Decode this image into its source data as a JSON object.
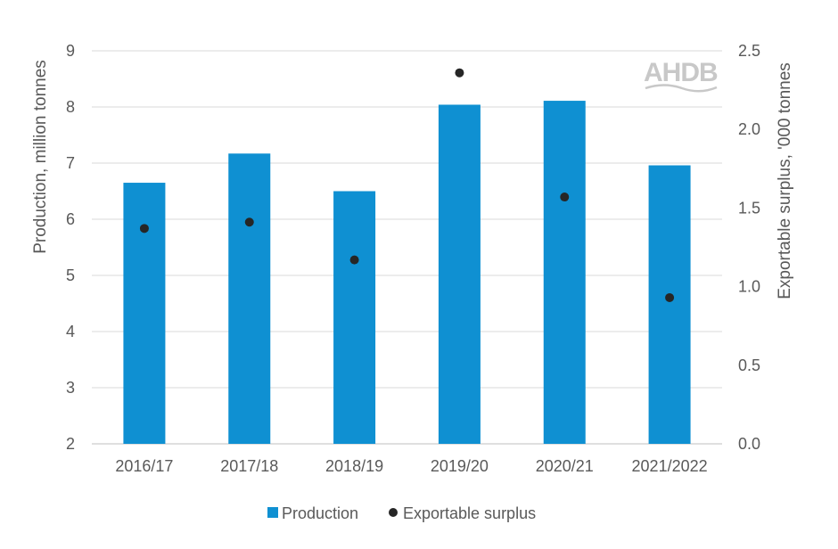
{
  "chart_data": {
    "type": "bar",
    "categories": [
      "2016/17",
      "2017/18",
      "2018/19",
      "2019/20",
      "2020/21",
      "2021/2022"
    ],
    "series": [
      {
        "name": "Production",
        "type": "bar",
        "axis": "left",
        "values": [
          6.65,
          7.17,
          6.5,
          8.04,
          8.11,
          6.96
        ]
      },
      {
        "name": "Exportable surplus",
        "type": "scatter",
        "axis": "right",
        "values": [
          1.37,
          1.41,
          1.17,
          2.36,
          1.57,
          0.93
        ]
      }
    ],
    "ylabel": "Production, million tonnes",
    "y2label": "Exportable surplus, '000 tonnes",
    "ylim": [
      2,
      9
    ],
    "y2lim": [
      0.0,
      2.5
    ],
    "yticks": [
      "2",
      "3",
      "4",
      "5",
      "6",
      "7",
      "8",
      "9"
    ],
    "y2ticks": [
      "0.0",
      "0.5",
      "1.0",
      "1.5",
      "2.0",
      "2.5"
    ],
    "grid": true,
    "legend_position": "bottom",
    "logo": "AHDB",
    "colors": {
      "bar": "#0f90d2",
      "dot": "#262626",
      "grid": "#d9d9d9",
      "text": "#595959"
    }
  }
}
